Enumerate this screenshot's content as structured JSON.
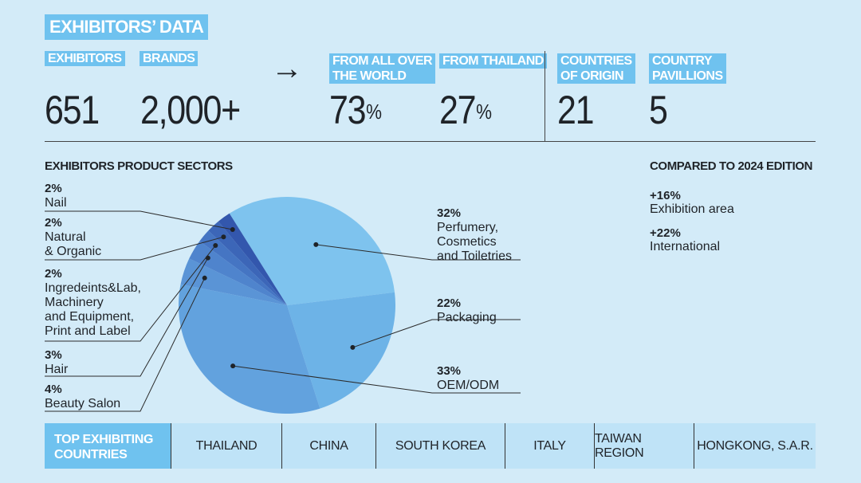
{
  "title": "EXHIBITORS’ DATA",
  "stats": {
    "exhibitors": {
      "label": "EXHIBITORS",
      "value": "651"
    },
    "brands": {
      "label": "BRANDS",
      "value": "2,000+"
    },
    "arrow": "→",
    "world": {
      "label_line1": "FROM ALL OVER",
      "label_line2": "THE WORLD",
      "value": "73",
      "unit": "%"
    },
    "thailand": {
      "label": "FROM THAILAND",
      "value": "27",
      "unit": "%"
    },
    "countries": {
      "label_line1": "COUNTRIES",
      "label_line2": "OF ORIGIN",
      "value": "21"
    },
    "pavillions": {
      "label_line1": "COUNTRY",
      "label_line2": "PAVILLIONS",
      "value": "5"
    }
  },
  "sectors_title": "EXHIBITORS PRODUCT SECTORS",
  "chart_data": {
    "type": "pie",
    "title": "EXHIBITORS PRODUCT SECTORS",
    "slices": [
      {
        "pct": "32%",
        "value": 32,
        "label_lines": [
          "Perfumery,",
          "Cosmetics",
          "and Toiletries"
        ],
        "color": "#7ec3ee"
      },
      {
        "pct": "22%",
        "value": 22,
        "label_lines": [
          "Packaging"
        ],
        "color": "#6db3e7"
      },
      {
        "pct": "33%",
        "value": 33,
        "label_lines": [
          "OEM/ODM"
        ],
        "color": "#62a2de"
      },
      {
        "pct": "4%",
        "value": 4,
        "label_lines": [
          "Beauty Salon"
        ],
        "color": "#5a94d6"
      },
      {
        "pct": "3%",
        "value": 3,
        "label_lines": [
          "Hair"
        ],
        "color": "#4f84cd"
      },
      {
        "pct": "2%",
        "value": 2,
        "label_lines": [
          "Ingredeints&Lab,",
          "Machinery",
          "and Equipment,",
          "Print and Label"
        ],
        "color": "#4575c3"
      },
      {
        "pct": "2%",
        "value": 2,
        "label_lines": [
          "Natural",
          "& Organic"
        ],
        "color": "#3c66b8"
      },
      {
        "pct": "2%",
        "value": 2,
        "label_lines": [
          "Nail"
        ],
        "color": "#3357ad"
      }
    ]
  },
  "compared": {
    "title": "COMPARED TO 2024 EDITION",
    "items": [
      {
        "value": "+16%",
        "label": "Exhibition area"
      },
      {
        "value": "+22%",
        "label": "International"
      }
    ]
  },
  "top_countries": {
    "header_line1": "TOP EXHIBITING",
    "header_line2": "COUNTRIES",
    "countries": [
      "THAILAND",
      "CHINA",
      "SOUTH KOREA",
      "ITALY",
      "TAIWAN REGION",
      "HONGKONG, S.A.R."
    ]
  }
}
